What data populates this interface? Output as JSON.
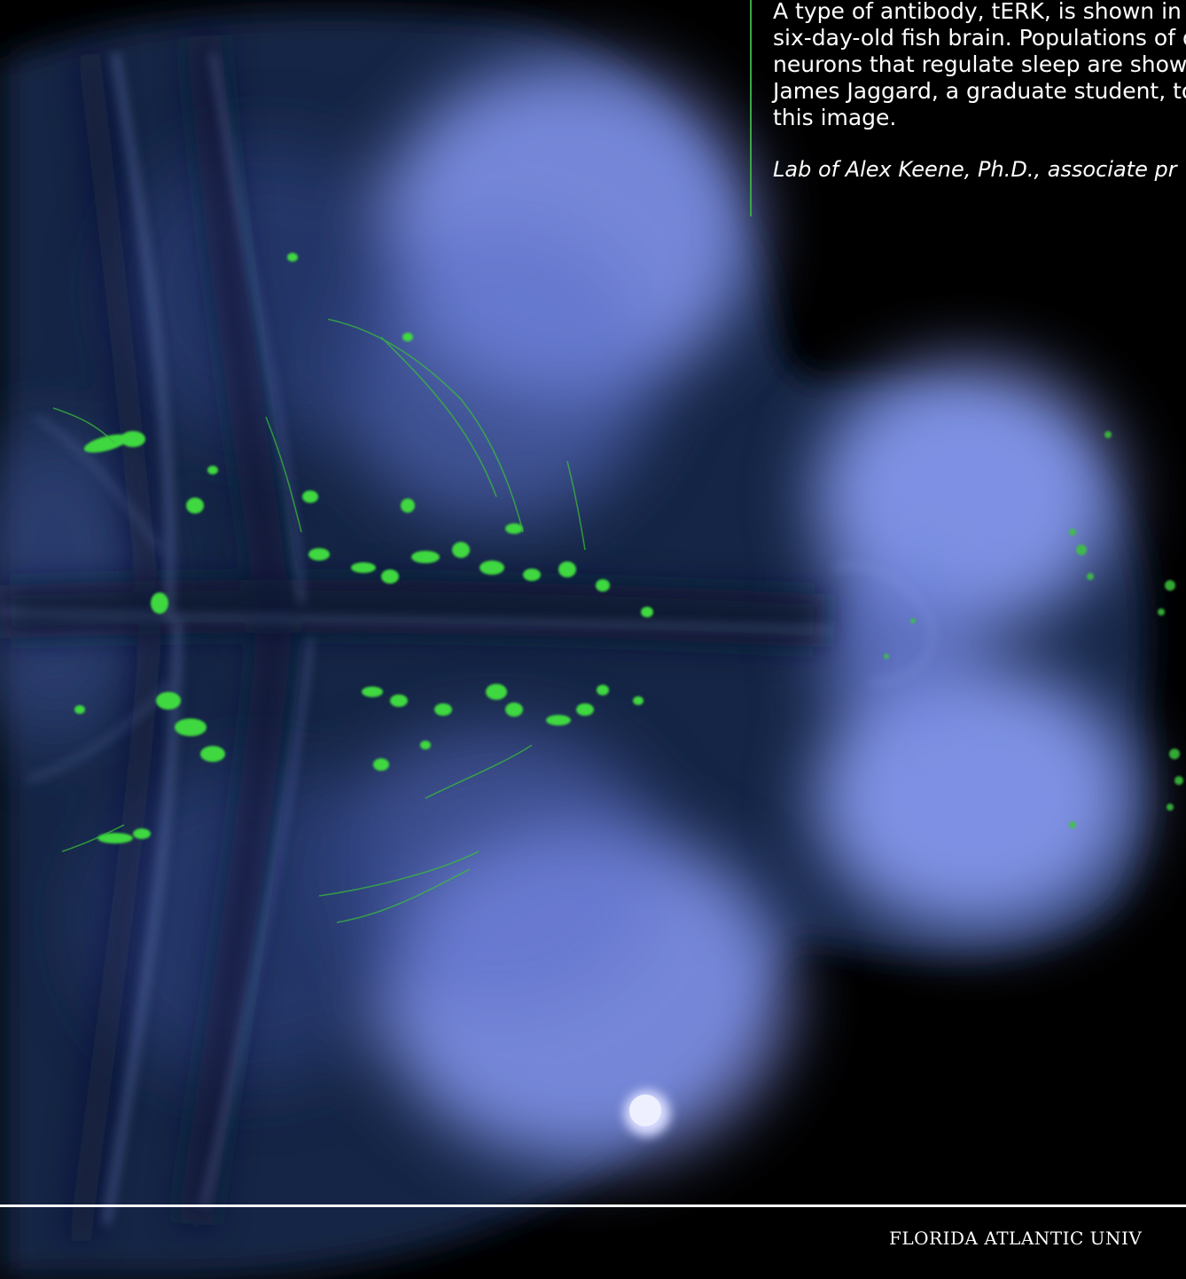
{
  "caption": {
    "lines": [
      "A type of antibody, tERK, is shown in p",
      "six-day-old fish brain. Populations of d",
      "neurons that regulate sleep are shown",
      "James Jaggard, a graduate student, to",
      "this image."
    ],
    "credit": "Lab of Alex Keene, Ph.D., associate pr"
  },
  "footer": {
    "text": "FLORIDA ATLANTIC UNIV"
  },
  "colors": {
    "background": "#000000",
    "tissue_blue": "#7f92f0",
    "neuron_green": "#3fd43f",
    "accent_rule": "#3da64a",
    "text": "#ffffff"
  }
}
